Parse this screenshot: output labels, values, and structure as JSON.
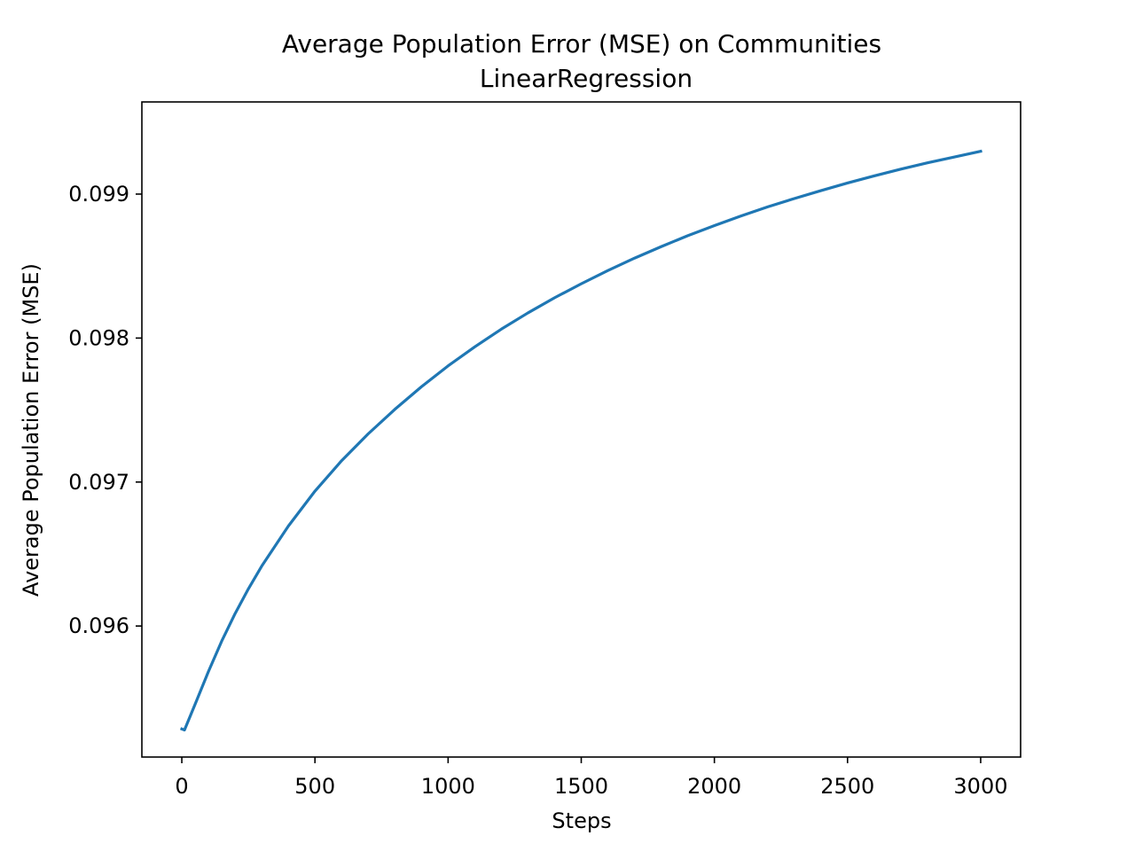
{
  "chart_data": {
    "type": "line",
    "title": "Average Population Error (MSE) on Communities",
    "subtitle": "LinearRegression",
    "xlabel": "Steps",
    "ylabel": "Average Population Error (MSE)",
    "xlim": [
      -150,
      3150
    ],
    "ylim": [
      0.09509,
      0.09964
    ],
    "xticks": [
      0,
      500,
      1000,
      1500,
      2000,
      2500,
      3000
    ],
    "xtick_labels": [
      "0",
      "500",
      "1000",
      "1500",
      "2000",
      "2500",
      "3000"
    ],
    "yticks": [
      0.096,
      0.097,
      0.098,
      0.099
    ],
    "ytick_labels": [
      "0.096",
      "0.097",
      "0.098",
      "0.099"
    ],
    "grid": false,
    "legend": "none",
    "series": [
      {
        "color": "#1f77b4",
        "x": [
          0,
          10,
          50,
          100,
          150,
          200,
          250,
          300,
          400,
          500,
          600,
          700,
          800,
          900,
          1000,
          1100,
          1200,
          1300,
          1400,
          1500,
          1600,
          1700,
          1800,
          1900,
          2000,
          2100,
          2200,
          2300,
          2400,
          2500,
          2600,
          2700,
          2800,
          2900,
          3000
        ],
        "y": [
          0.095285,
          0.095278,
          0.095457,
          0.095684,
          0.095896,
          0.096086,
          0.096258,
          0.096416,
          0.096694,
          0.096937,
          0.097148,
          0.097335,
          0.097505,
          0.097662,
          0.097807,
          0.097939,
          0.098062,
          0.098175,
          0.09828,
          0.098377,
          0.098469,
          0.098555,
          0.098635,
          0.098711,
          0.098781,
          0.098848,
          0.098911,
          0.098969,
          0.099024,
          0.099077,
          0.099126,
          0.099173,
          0.099217,
          0.099257,
          0.099297
        ]
      }
    ]
  }
}
